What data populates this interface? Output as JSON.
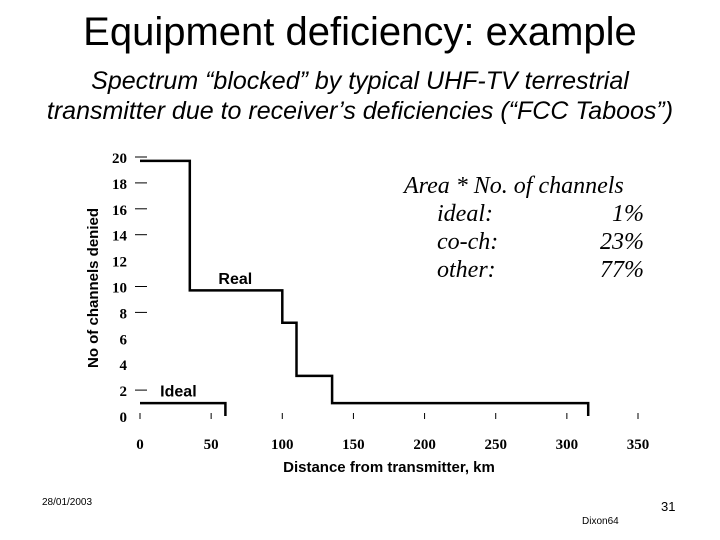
{
  "slide": {
    "title": "Equipment deficiency: example",
    "subtitle": "Spectrum “blocked” by typical UHF-TV terrestrial transmitter due to receiver’s deficiencies (“FCC Taboos”)",
    "date": "28/01/2003",
    "page_number": "31",
    "author": "Dixon64"
  },
  "area_note": {
    "title": "Area * No. of channels",
    "rows": [
      {
        "label": "ideal:",
        "value": "1%"
      },
      {
        "label": "co-ch:",
        "value": "23%"
      },
      {
        "label": "other:",
        "value": "77%"
      }
    ]
  },
  "chart_data": {
    "type": "line",
    "xlabel": "Distance from transmitter, km",
    "ylabel": "No of channels denied",
    "xlim": [
      0,
      350
    ],
    "ylim": [
      0,
      20
    ],
    "xticks": [
      "0",
      "50",
      "100",
      "150",
      "200",
      "250",
      "300",
      "350"
    ],
    "yticks": [
      "0",
      "2",
      "4",
      "6",
      "8",
      "10",
      "12",
      "14",
      "16",
      "18",
      "20"
    ],
    "series": [
      {
        "name": "Real",
        "x": [
          0,
          35,
          35,
          100,
          100,
          110,
          110,
          135,
          135,
          315,
          315
        ],
        "y": [
          19.7,
          19.7,
          9.7,
          9.7,
          7.2,
          7.2,
          3.1,
          3.1,
          1,
          1,
          0
        ]
      },
      {
        "name": "Ideal",
        "x": [
          0,
          60,
          60
        ],
        "y": [
          1,
          1,
          0
        ]
      }
    ]
  }
}
